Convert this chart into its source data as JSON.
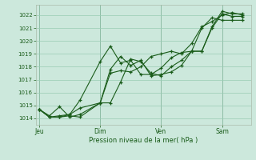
{
  "xlabel": "Pression niveau de la mer( hPa )",
  "bg_color": "#cce8dc",
  "grid_color": "#99ccb3",
  "line_color": "#1a5c1a",
  "ylim": [
    1013.5,
    1022.8
  ],
  "yticks": [
    1014,
    1015,
    1016,
    1017,
    1018,
    1019,
    1020,
    1021,
    1022
  ],
  "xtick_labels": [
    "Jeu",
    "Dim",
    "Ven",
    "Sam"
  ],
  "xtick_pos": [
    0,
    36,
    72,
    108
  ],
  "xlim": [
    -2,
    125
  ],
  "series1_x": [
    0,
    6,
    12,
    18,
    24,
    36,
    42,
    48,
    54,
    60,
    66,
    72,
    78,
    84,
    90,
    96,
    102,
    108,
    114,
    120
  ],
  "series1_y": [
    1014.7,
    1014.1,
    1014.1,
    1014.3,
    1014.8,
    1015.2,
    1017.5,
    1017.7,
    1017.6,
    1018.0,
    1018.8,
    1019.0,
    1019.2,
    1019.0,
    1019.8,
    1021.1,
    1021.5,
    1022.0,
    1022.2,
    1022.0
  ],
  "series2_x": [
    0,
    6,
    12,
    18,
    24,
    36,
    42,
    48,
    54,
    60,
    66,
    72,
    78,
    84,
    90,
    96,
    102,
    108,
    114,
    120
  ],
  "series2_y": [
    1014.7,
    1014.1,
    1014.1,
    1014.2,
    1014.1,
    1015.2,
    1015.2,
    1016.8,
    1018.6,
    1018.4,
    1017.5,
    1017.3,
    1018.0,
    1018.5,
    1019.2,
    1019.2,
    1021.0,
    1022.1,
    1021.9,
    1021.9
  ],
  "series3_x": [
    0,
    6,
    12,
    18,
    24,
    36,
    42,
    48,
    54,
    60,
    66,
    72,
    78,
    84,
    90,
    96,
    102,
    108,
    114,
    120
  ],
  "series3_y": [
    1014.7,
    1014.2,
    1014.9,
    1014.1,
    1014.3,
    1015.2,
    1017.8,
    1018.8,
    1018.1,
    1018.5,
    1017.3,
    1017.4,
    1017.6,
    1018.1,
    1019.2,
    1019.2,
    1021.1,
    1022.3,
    1022.1,
    1022.1
  ],
  "series4_x": [
    0,
    6,
    12,
    18,
    24,
    36,
    42,
    48,
    54,
    60,
    66,
    72,
    78,
    84,
    90,
    96,
    102,
    108,
    114,
    120
  ],
  "series4_y": [
    1014.7,
    1014.1,
    1014.2,
    1014.3,
    1015.4,
    1018.4,
    1019.6,
    1018.3,
    1018.5,
    1017.4,
    1017.4,
    1017.9,
    1018.7,
    1019.1,
    1019.2,
    1021.0,
    1021.8,
    1021.6,
    1021.6,
    1021.6
  ],
  "vline_positions": [
    0,
    36,
    72,
    108
  ]
}
